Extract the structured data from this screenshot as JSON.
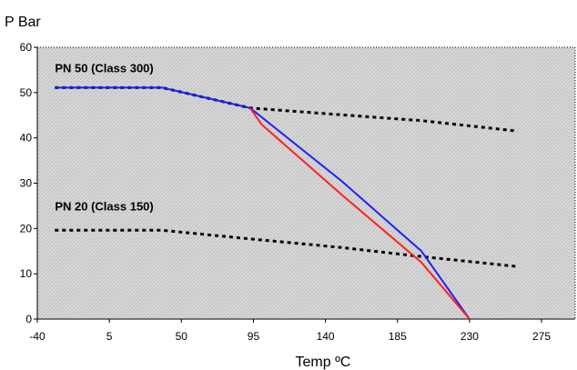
{
  "chart_data": {
    "type": "line",
    "title": "",
    "ylabel": "P Bar",
    "xlabel": "Temp ºC",
    "xlim": [
      -40,
      296
    ],
    "ylim": [
      0,
      60
    ],
    "x_ticks": [
      -40,
      5,
      50,
      95,
      140,
      185,
      230,
      275
    ],
    "y_ticks": [
      0,
      10,
      20,
      30,
      40,
      50,
      60
    ],
    "grid": false,
    "legend": "none",
    "colors": {
      "plot_background": "#d9d9d9",
      "hatch": "#bdbdbd",
      "dotted_series": "#000000",
      "blue_series": "#1f1fff",
      "red_series": "#ff2020"
    },
    "annotations": [
      {
        "text": "PN 50 (Class 300)",
        "x": -29,
        "y": 54.5
      },
      {
        "text": "PN 20 (Class 150)",
        "x": -29,
        "y": 24
      }
    ],
    "series": [
      {
        "style": "dotted",
        "color": "#000000",
        "x": [
          -29,
          38,
          93,
          150,
          200,
          260
        ],
        "y": [
          51.1,
          51.1,
          46.6,
          45.1,
          43.8,
          41.5
        ]
      },
      {
        "style": "dotted",
        "color": "#000000",
        "x": [
          -29,
          38,
          93,
          150,
          200,
          260
        ],
        "y": [
          19.6,
          19.6,
          17.7,
          15.8,
          13.8,
          11.6
        ]
      },
      {
        "style": "solid",
        "color": "#1f1fff",
        "x": [
          -29,
          38,
          93,
          150,
          200,
          230
        ],
        "y": [
          51.1,
          51.1,
          46.6,
          30.5,
          15.0,
          0
        ]
      },
      {
        "style": "solid",
        "color": "#ff2020",
        "x": [
          93,
          100,
          150,
          200,
          230
        ],
        "y": [
          46.6,
          43.0,
          27.5,
          12.5,
          0
        ]
      }
    ]
  }
}
